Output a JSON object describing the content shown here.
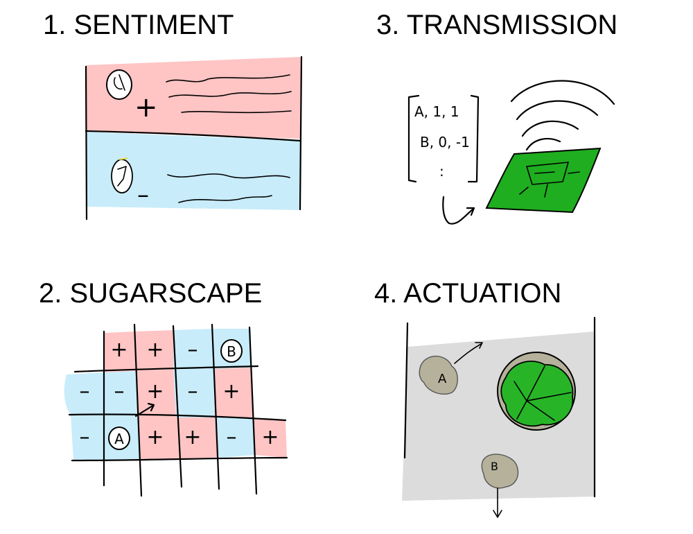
{
  "panels": {
    "sentiment": {
      "title": "1. SENTIMENT",
      "pos_sign": "+",
      "neg_sign": "–",
      "colors": {
        "positive": "#ffc4c4",
        "negative": "#c8ecfa"
      }
    },
    "sugarscape": {
      "title": "2. SUGARSCAPE",
      "cells": [
        [
          "",
          "+",
          "+",
          "–",
          "B",
          ""
        ],
        [
          "–",
          "–",
          "+",
          "–",
          "+",
          ""
        ],
        [
          "–",
          "A",
          "+",
          "+",
          "–",
          "+"
        ]
      ],
      "agents": [
        "A",
        "B"
      ],
      "colors": {
        "positive": "#ffc4c4",
        "negative": "#c8ecfa"
      }
    },
    "transmission": {
      "title": "3. TRANSMISSION",
      "matrix_rows": [
        "A, 1, 1",
        "B, 0, -1",
        ":"
      ],
      "colors": {
        "board": "#1fae1f"
      }
    },
    "actuation": {
      "title": "4. ACTUATION",
      "agents": [
        "A",
        "B"
      ],
      "colors": {
        "field": "#dcdcdc",
        "agent": "#b5b19b",
        "plant": "#27b527"
      }
    }
  }
}
